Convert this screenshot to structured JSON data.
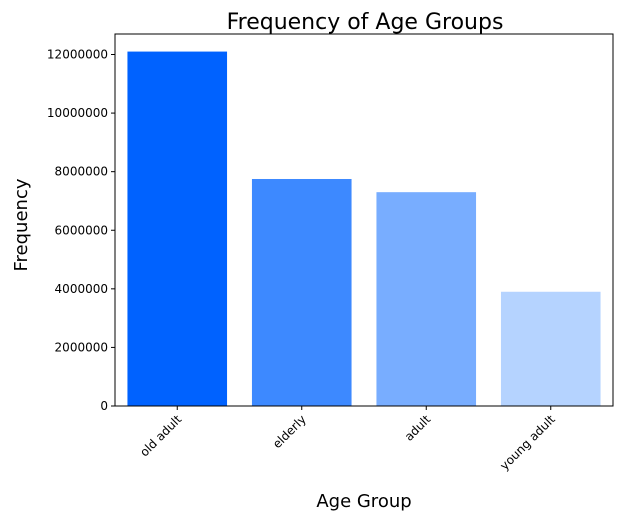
{
  "chart_data": {
    "type": "bar",
    "title": "Frequency of Age Groups",
    "xlabel": "Age Group",
    "ylabel": "Frequency",
    "categories": [
      "old adult",
      "elderly",
      "adult",
      "young adult"
    ],
    "values": [
      12100000,
      7750000,
      7300000,
      3900000
    ],
    "colors": [
      "#0062ff",
      "#3d89ff",
      "#78adff",
      "#b5d3ff"
    ],
    "ylim": [
      0,
      12700000
    ],
    "yticks": [
      0,
      2000000,
      4000000,
      6000000,
      8000000,
      10000000,
      12000000
    ],
    "ytick_labels": [
      "0",
      "2000000",
      "4000000",
      "6000000",
      "8000000",
      "10000000",
      "12000000"
    ],
    "grid": false,
    "legend": "none"
  }
}
